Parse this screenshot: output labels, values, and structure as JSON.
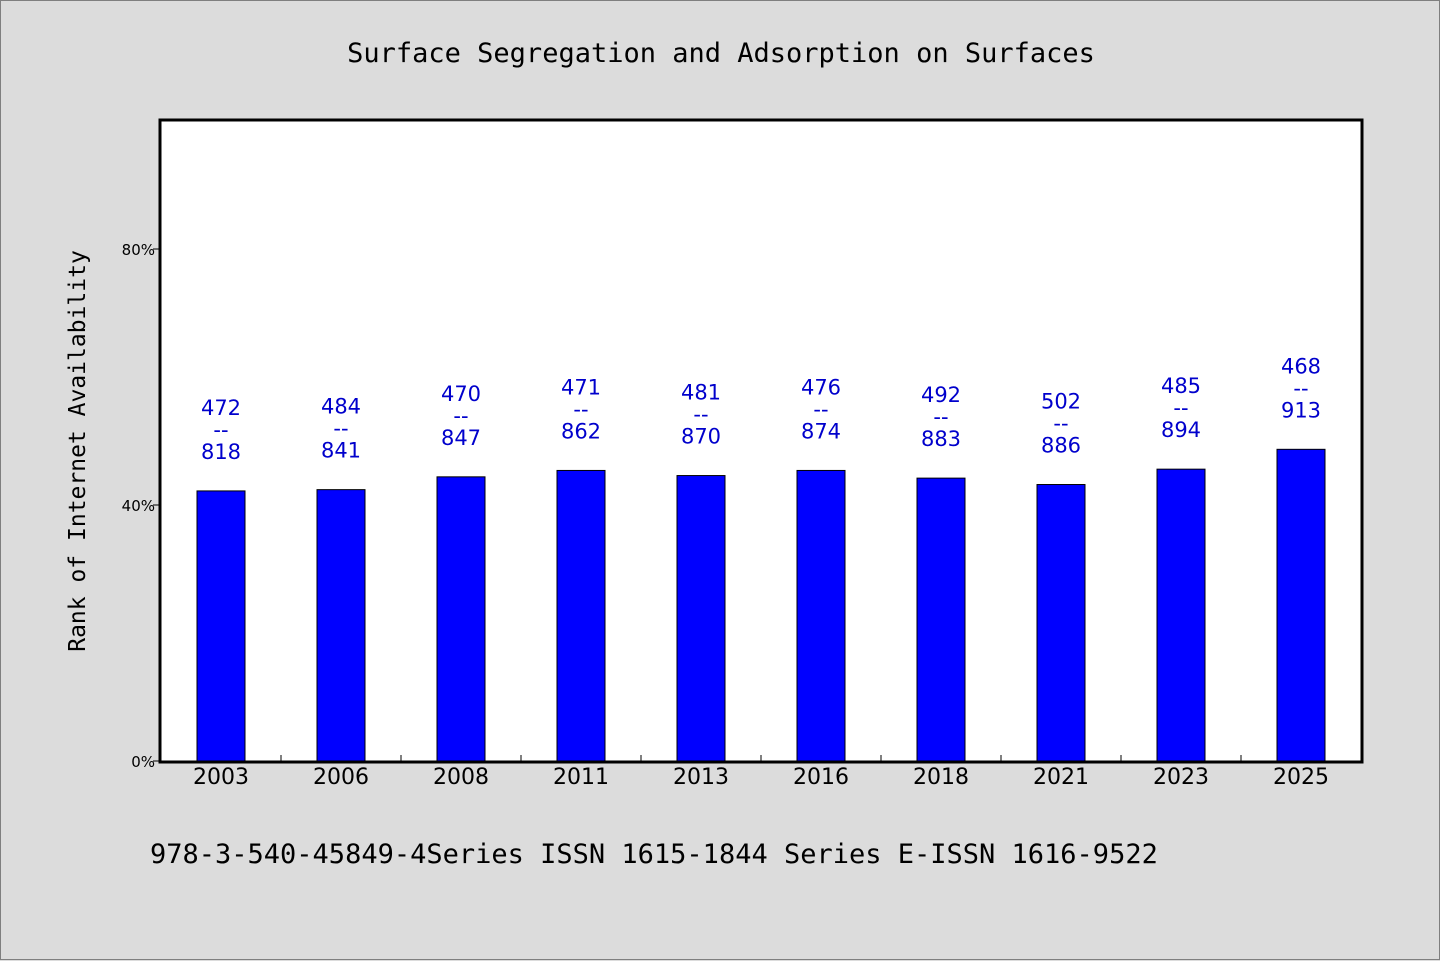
{
  "chart_data": {
    "type": "bar",
    "title": "Surface Segregation and Adsorption on Surfaces",
    "ylabel": "Rank of Internet Availability",
    "xlabel": "",
    "footnote": "978-3-540-45849-4Series ISSN 1615-1844 Series E-ISSN 1616-9522",
    "ylim": [
      0,
      100
    ],
    "yticks": [
      0,
      40,
      80
    ],
    "ytick_labels": [
      "0%",
      "40%",
      "80%"
    ],
    "categories": [
      "2003",
      "2006",
      "2008",
      "2011",
      "2013",
      "2016",
      "2018",
      "2021",
      "2023",
      "2025"
    ],
    "values": [
      42.2,
      42.4,
      44.4,
      45.4,
      44.6,
      45.4,
      44.2,
      43.2,
      45.6,
      48.7
    ],
    "bar_labels": [
      [
        "472",
        "--",
        "818"
      ],
      [
        "484",
        "--",
        "841"
      ],
      [
        "470",
        "--",
        "847"
      ],
      [
        "471",
        "--",
        "862"
      ],
      [
        "481",
        "--",
        "870"
      ],
      [
        "476",
        "--",
        "874"
      ],
      [
        "492",
        "--",
        "883"
      ],
      [
        "502",
        "--",
        "886"
      ],
      [
        "485",
        "--",
        "894"
      ],
      [
        "468",
        "--",
        "913"
      ]
    ],
    "grid": false,
    "colors": {
      "bar": "#0000ff",
      "bar_label": "#0000cc",
      "background": "#dcdcdc",
      "plot_background": "#ffffff"
    }
  }
}
